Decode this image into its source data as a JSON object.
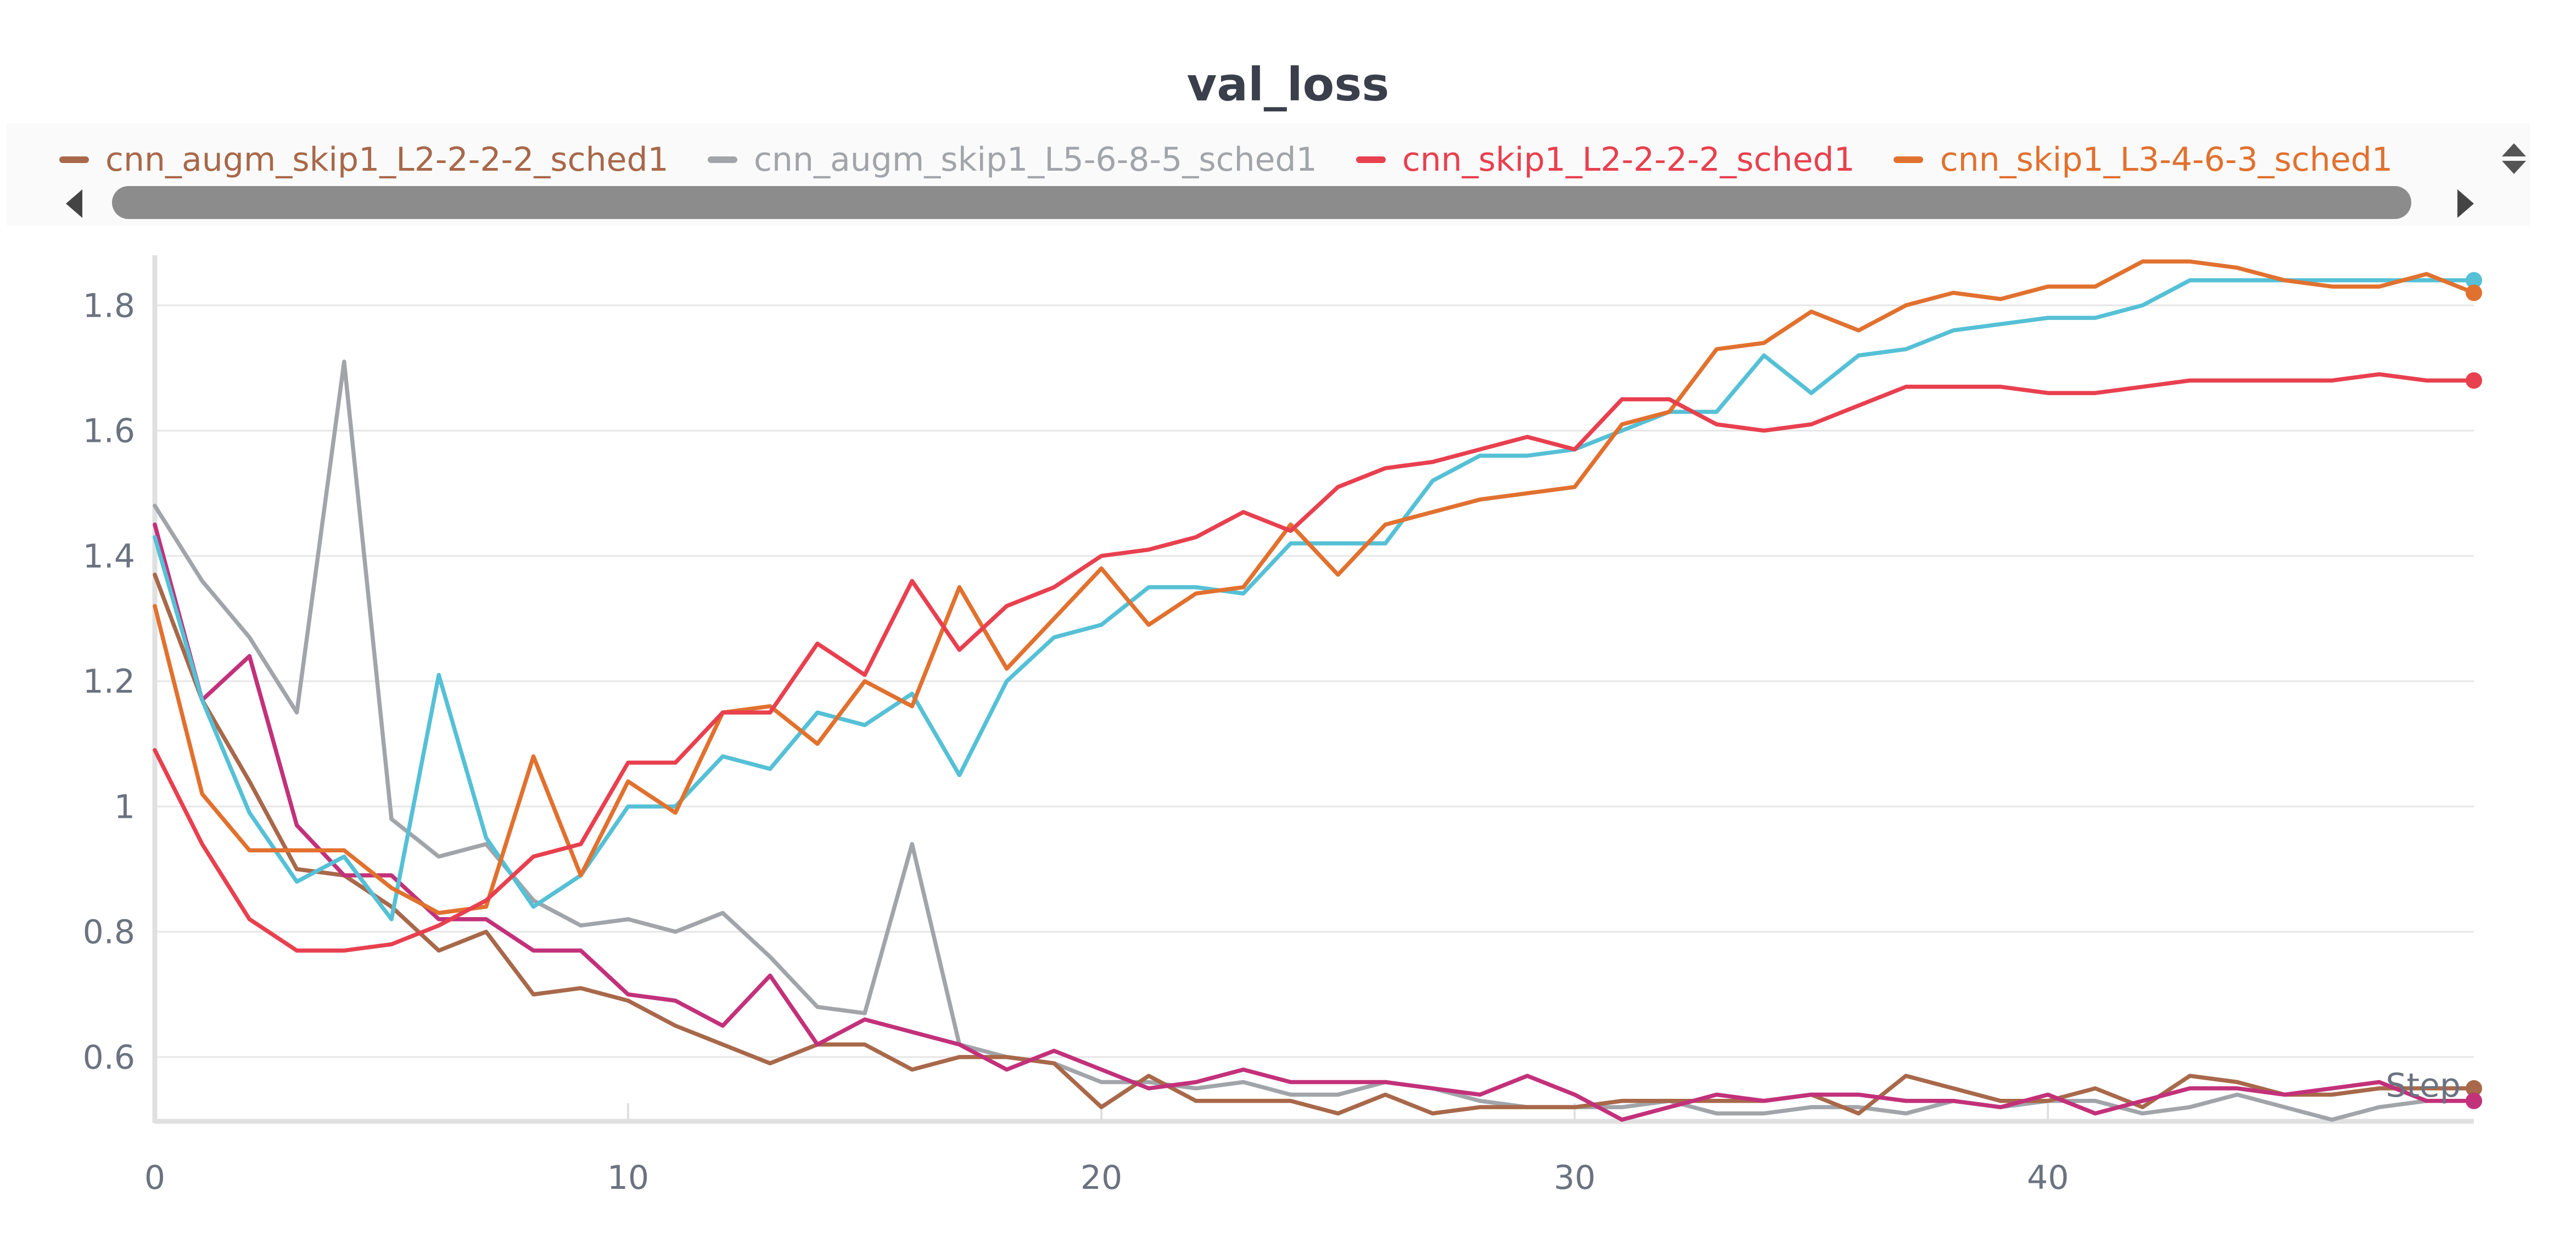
{
  "chart_data": {
    "type": "line",
    "title": "val_loss",
    "xlabel": "Step",
    "ylabel": "",
    "xlim": [
      0,
      49
    ],
    "ylim": [
      0.5,
      1.88
    ],
    "xticks": [
      0,
      10,
      20,
      30,
      40
    ],
    "xtick_labels": [
      "0",
      "10",
      "20",
      "30",
      "40"
    ],
    "yticks": [
      0.6,
      0.8,
      1.0,
      1.2,
      1.4,
      1.6,
      1.8
    ],
    "ytick_labels": [
      "0.6",
      "0.8",
      "1",
      "1.2",
      "1.4",
      "1.6",
      "1.8"
    ],
    "grid": true,
    "legend_position": "top",
    "x": [
      0,
      1,
      2,
      3,
      4,
      5,
      6,
      7,
      8,
      9,
      10,
      11,
      12,
      13,
      14,
      15,
      16,
      17,
      18,
      19,
      20,
      21,
      22,
      23,
      24,
      25,
      26,
      27,
      28,
      29,
      30,
      31,
      32,
      33,
      34,
      35,
      36,
      37,
      38,
      39,
      40,
      41,
      42,
      43,
      44,
      45,
      46,
      47,
      48,
      49
    ],
    "series": [
      {
        "name": "cnn_augm_skip1_L5-6-8-5_sched1",
        "color": "#a1a5aa",
        "in_legend": true,
        "values": [
          1.48,
          1.36,
          1.27,
          1.15,
          1.71,
          0.98,
          0.92,
          0.94,
          0.85,
          0.81,
          0.82,
          0.8,
          0.83,
          0.76,
          0.68,
          0.67,
          0.94,
          0.62,
          0.6,
          0.59,
          0.56,
          0.56,
          0.55,
          0.56,
          0.54,
          0.54,
          0.56,
          0.55,
          0.53,
          0.52,
          0.52,
          0.52,
          0.53,
          0.51,
          0.51,
          0.52,
          0.52,
          0.51,
          0.53,
          0.52,
          0.53,
          0.53,
          0.51,
          0.52,
          0.54,
          0.52,
          0.5,
          0.52,
          0.53,
          0.53
        ]
      },
      {
        "name": "cnn_augm_skip1_L2-2-2-2_sched1",
        "color": "#a8684a",
        "in_legend": true,
        "values": [
          1.37,
          1.17,
          1.04,
          0.9,
          0.89,
          0.84,
          0.77,
          0.8,
          0.7,
          0.71,
          0.69,
          0.65,
          0.62,
          0.59,
          0.62,
          0.62,
          0.58,
          0.6,
          0.6,
          0.59,
          0.52,
          0.57,
          0.53,
          0.53,
          0.53,
          0.51,
          0.54,
          0.51,
          0.52,
          0.52,
          0.52,
          0.53,
          0.53,
          0.53,
          0.53,
          0.54,
          0.51,
          0.57,
          0.55,
          0.53,
          0.53,
          0.55,
          0.52,
          0.57,
          0.56,
          0.54,
          0.54,
          0.55,
          0.55,
          0.55
        ]
      },
      {
        "name": "",
        "color": "#c2317a",
        "in_legend": false,
        "values": [
          1.45,
          1.17,
          1.24,
          0.97,
          0.89,
          0.89,
          0.82,
          0.82,
          0.77,
          0.77,
          0.7,
          0.69,
          0.65,
          0.73,
          0.62,
          0.66,
          0.64,
          0.62,
          0.58,
          0.61,
          0.58,
          0.55,
          0.56,
          0.58,
          0.56,
          0.56,
          0.56,
          0.55,
          0.54,
          0.57,
          0.54,
          0.5,
          0.52,
          0.54,
          0.53,
          0.54,
          0.54,
          0.53,
          0.53,
          0.52,
          0.54,
          0.51,
          0.53,
          0.55,
          0.55,
          0.54,
          0.55,
          0.56,
          0.53,
          0.53
        ]
      },
      {
        "name": "",
        "color": "#55c0d6",
        "in_legend": false,
        "values": [
          1.43,
          1.17,
          0.99,
          0.88,
          0.92,
          0.82,
          1.21,
          0.95,
          0.84,
          0.89,
          1.0,
          1.0,
          1.08,
          1.06,
          1.15,
          1.13,
          1.18,
          1.05,
          1.2,
          1.27,
          1.29,
          1.35,
          1.35,
          1.34,
          1.42,
          1.42,
          1.42,
          1.52,
          1.56,
          1.56,
          1.57,
          1.6,
          1.63,
          1.63,
          1.72,
          1.66,
          1.72,
          1.73,
          1.76,
          1.77,
          1.78,
          1.78,
          1.8,
          1.84,
          1.84,
          1.84,
          1.84,
          1.84,
          1.84,
          1.84
        ]
      },
      {
        "name": "cnn_skip1_L3-4-6-3_sched1",
        "color": "#e1712f",
        "in_legend": true,
        "values": [
          1.32,
          1.02,
          0.93,
          0.93,
          0.93,
          0.87,
          0.83,
          0.84,
          1.08,
          0.89,
          1.04,
          0.99,
          1.15,
          1.16,
          1.1,
          1.2,
          1.16,
          1.35,
          1.22,
          1.3,
          1.38,
          1.29,
          1.34,
          1.35,
          1.45,
          1.37,
          1.45,
          1.47,
          1.49,
          1.5,
          1.51,
          1.61,
          1.63,
          1.73,
          1.74,
          1.79,
          1.76,
          1.8,
          1.82,
          1.81,
          1.83,
          1.83,
          1.87,
          1.87,
          1.86,
          1.84,
          1.83,
          1.83,
          1.85,
          1.82
        ]
      },
      {
        "name": "cnn_skip1_L2-2-2-2_sched1",
        "color": "#e8404f",
        "in_legend": true,
        "values": [
          1.09,
          0.94,
          0.82,
          0.77,
          0.77,
          0.78,
          0.81,
          0.85,
          0.92,
          0.94,
          1.07,
          1.07,
          1.15,
          1.15,
          1.26,
          1.21,
          1.36,
          1.25,
          1.32,
          1.35,
          1.4,
          1.41,
          1.43,
          1.47,
          1.44,
          1.51,
          1.54,
          1.55,
          1.57,
          1.59,
          1.57,
          1.65,
          1.65,
          1.61,
          1.6,
          1.61,
          1.64,
          1.67,
          1.67,
          1.67,
          1.66,
          1.66,
          1.67,
          1.68,
          1.68,
          1.68,
          1.68,
          1.69,
          1.68,
          1.68
        ]
      }
    ],
    "legend": [
      {
        "name": "cnn_augm_skip1_L2-2-2-2_sched1",
        "color": "#a8684a"
      },
      {
        "name": "cnn_augm_skip1_L5-6-8-5_sched1",
        "color": "#a1a5aa"
      },
      {
        "name": "cnn_skip1_L2-2-2-2_sched1",
        "color": "#e8404f"
      },
      {
        "name": "cnn_skip1_L3-4-6-3_sched1",
        "color": "#e1712f"
      }
    ]
  }
}
